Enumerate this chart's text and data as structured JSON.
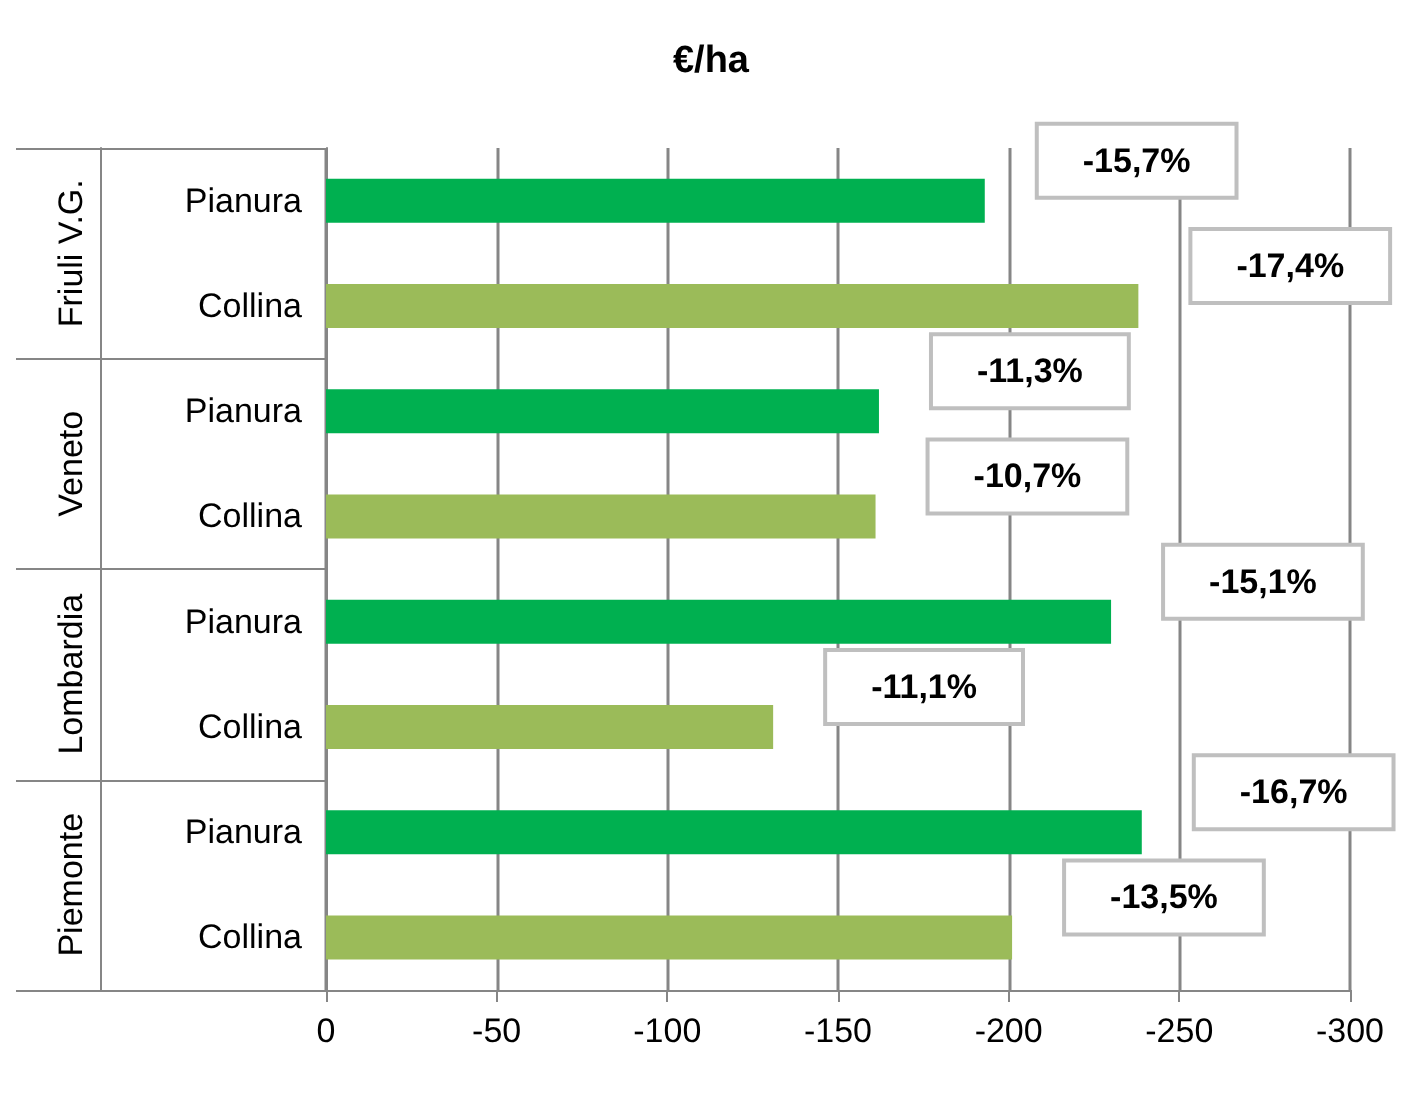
{
  "chart_data": {
    "type": "bar",
    "orientation": "horizontal",
    "title": "€/ha",
    "categories": [
      "Pianura",
      "Collina",
      "Pianura",
      "Collina",
      "Pianura",
      "Collina",
      "Pianura",
      "Collina"
    ],
    "values": [
      -193,
      -238,
      -162,
      -161,
      -230,
      -131,
      -239,
      -201
    ],
    "colors": [
      "#00b050",
      "#9bbb59",
      "#00b050",
      "#9bbb59",
      "#00b050",
      "#9bbb59",
      "#00b050",
      "#9bbb59"
    ],
    "annotations": [
      "Friuli V.G.",
      "Veneto",
      "Lombardia",
      "Piemonte",
      "-15,7%",
      "-17,4%",
      "-11,3%",
      "-10,7%",
      "-15,1%",
      "-11,1%",
      "-16,7%",
      "-13,5%"
    ],
    "xlim": [
      0,
      -300
    ],
    "xticks": [
      0,
      -50,
      -100,
      -150,
      -200,
      -250,
      -300
    ],
    "grid": "x"
  }
}
